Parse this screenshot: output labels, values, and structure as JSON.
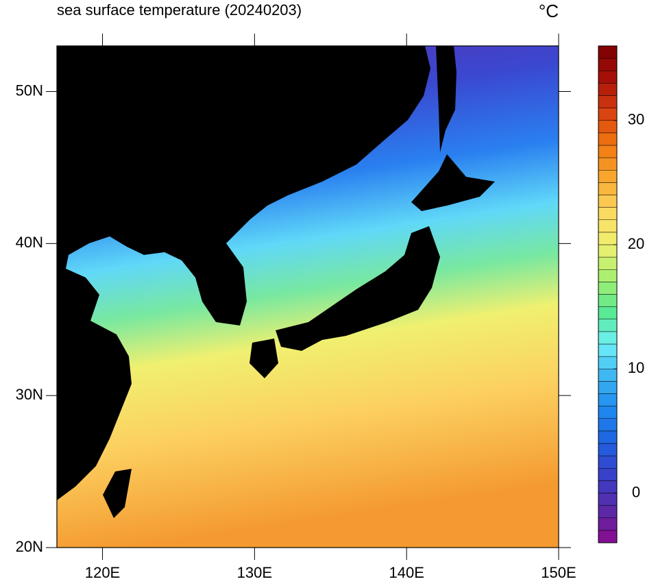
{
  "map": {
    "title": "sea surface temperature (20240203)",
    "unit": "°C",
    "lonlim": [
      117,
      150
    ],
    "latlim": [
      20,
      53
    ],
    "lonticks": [
      {
        "value": 120,
        "label": "120E"
      },
      {
        "value": 130,
        "label": "130E"
      },
      {
        "value": 140,
        "label": "140E"
      },
      {
        "value": 150,
        "label": "150E"
      }
    ],
    "latticks": [
      {
        "value": 20,
        "label": "20N"
      },
      {
        "value": 30,
        "label": "30N"
      },
      {
        "value": 40,
        "label": "40N"
      },
      {
        "value": 50,
        "label": "50N"
      }
    ],
    "colorbar": {
      "range": [
        -4,
        36
      ],
      "ticks": [
        0,
        10,
        20,
        30
      ],
      "colors": [
        "#8b0a8f",
        "#5a2aa8",
        "#3a3fc8",
        "#2060e0",
        "#1e88f0",
        "#3cb4f0",
        "#6ef0f8",
        "#58e890",
        "#a8f070",
        "#f0f070",
        "#fcd860",
        "#f8a830",
        "#f07810",
        "#d84010",
        "#a81008",
        "#7a0000"
      ]
    }
  }
}
